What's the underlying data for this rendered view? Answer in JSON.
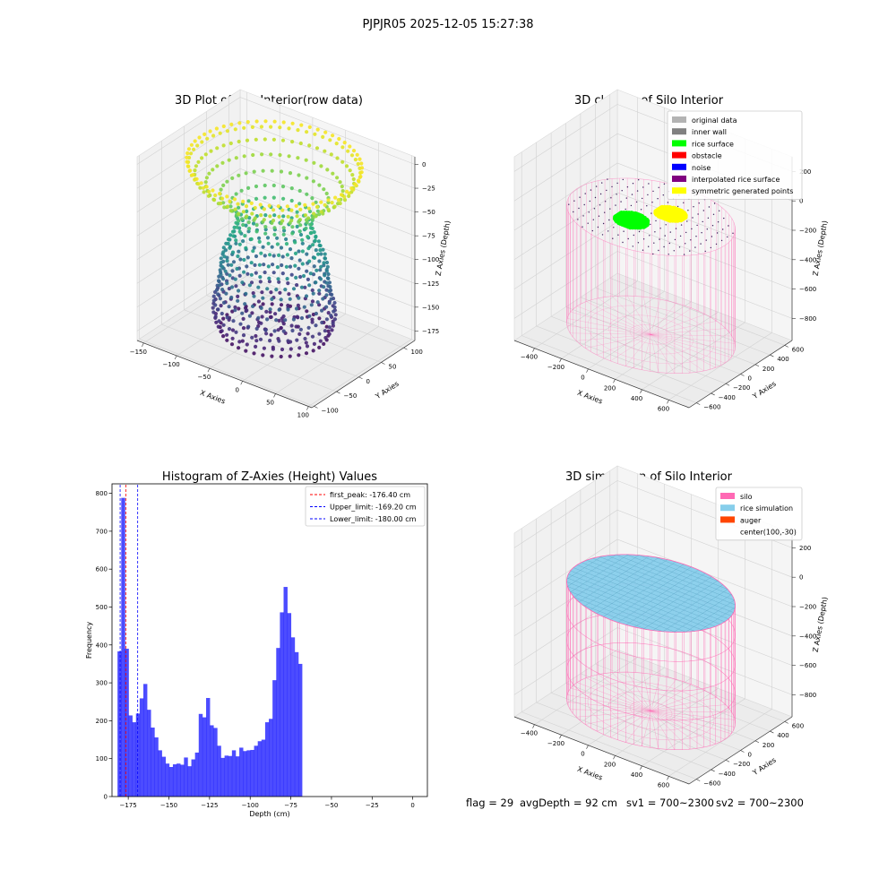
{
  "figure_title": "PJPJR05 2025-12-05 15:27:38",
  "footer": {
    "flag": "flag = 29",
    "avg_depth": "avgDepth = 92 cm",
    "sv1": "sv1 = 700~2300",
    "sv2": "sv2 = 700~2300"
  },
  "chart_data": [
    {
      "type": "scatter",
      "projection": "3d",
      "title": "3D Plot of Silo Interior(row data)",
      "xlabel": "X Axies",
      "ylabel": "Y Axies",
      "zlabel": "Z Axies (Depth)",
      "x_ticks": [
        -150,
        -100,
        -50,
        0,
        50,
        100
      ],
      "y_ticks": [
        -100,
        -50,
        0,
        50,
        100
      ],
      "z_ticks": [
        0,
        -25,
        -50,
        -75,
        -100,
        -125,
        -150,
        -175
      ],
      "xlim": [
        -160,
        105
      ],
      "ylim": [
        -105,
        125
      ],
      "zlim": [
        -185,
        8
      ],
      "colormap": "viridis",
      "profile": [
        {
          "z": -175,
          "r": 68
        },
        {
          "z": -165,
          "r": 74
        },
        {
          "z": -155,
          "r": 77
        },
        {
          "z": -145,
          "r": 76
        },
        {
          "z": -135,
          "r": 72
        },
        {
          "z": -125,
          "r": 70
        },
        {
          "z": -115,
          "r": 68
        },
        {
          "z": -105,
          "r": 67
        },
        {
          "z": -95,
          "r": 64
        },
        {
          "z": -85,
          "r": 58
        },
        {
          "z": -75,
          "r": 52
        },
        {
          "z": -65,
          "r": 48
        },
        {
          "z": -55,
          "r": 48
        },
        {
          "z": -45,
          "r": 55
        },
        {
          "z": -35,
          "r": 68
        },
        {
          "z": -25,
          "r": 86
        },
        {
          "z": -15,
          "r": 100
        },
        {
          "z": -5,
          "r": 108
        },
        {
          "z": 0,
          "r": 110
        }
      ],
      "center": [
        -30,
        10
      ]
    },
    {
      "type": "scatter",
      "projection": "3d",
      "title": "3D classify of Silo Interior",
      "xlabel": "X Axies",
      "ylabel": "Y Axies",
      "zlabel": "Z Axies (Depth)",
      "x_ticks": [
        -400,
        -200,
        0,
        200,
        400,
        600
      ],
      "y_ticks": [
        -600,
        -400,
        -200,
        0,
        200,
        400,
        600
      ],
      "z_ticks": [
        200,
        0,
        -200,
        -400,
        -600,
        -800
      ],
      "xlim": [
        -550,
        750
      ],
      "ylim": [
        -700,
        700
      ],
      "zlim": [
        -950,
        300
      ],
      "legend_loc": "upper right",
      "legend": [
        {
          "label": "original data",
          "color": "#b3b3b3"
        },
        {
          "label": "inner wall",
          "color": "#808080"
        },
        {
          "label": "rice surface",
          "color": "#00ff00"
        },
        {
          "label": "obstacle",
          "color": "#ff0000"
        },
        {
          "label": "noise",
          "color": "#0000ff"
        },
        {
          "label": "interpolated rice surface",
          "color": "#800080"
        },
        {
          "label": "symmetric generated points",
          "color": "#ffff00"
        }
      ],
      "silo": {
        "center": [
          100,
          -30
        ],
        "radius": 550,
        "z_top": -100,
        "z_bottom": -900
      },
      "rice_surface_patch": {
        "center": [
          30,
          -170
        ],
        "radius": 110,
        "z": -100
      },
      "symmetric_patch": {
        "center": [
          170,
          110
        ],
        "radius": 100,
        "z": -100
      }
    },
    {
      "type": "bar",
      "title": "Histogram of Z-Axies (Height) Values",
      "xlabel": "Depth (cm)",
      "ylabel": "Frequency",
      "xlim": [
        -185,
        9
      ],
      "ylim": [
        0,
        825
      ],
      "x_ticks": [
        -175,
        -150,
        -125,
        -100,
        -75,
        -50,
        -25,
        0
      ],
      "y_ticks": [
        0,
        100,
        200,
        300,
        400,
        500,
        600,
        700,
        800
      ],
      "bin_start": -181.6,
      "bin_width": 2.27,
      "values": [
        383,
        788,
        390,
        214,
        196,
        219,
        259,
        297,
        229,
        182,
        156,
        122,
        105,
        87,
        78,
        85,
        87,
        84,
        103,
        80,
        98,
        116,
        218,
        209,
        260,
        188,
        181,
        134,
        102,
        108,
        107,
        122,
        106,
        129,
        120,
        122,
        123,
        134,
        146,
        150,
        196,
        205,
        307,
        392,
        486,
        553,
        484,
        420,
        381,
        350
      ],
      "bar_color": "#0000ff",
      "vlines": [
        {
          "label": "first_peak: -176.40 cm",
          "x": -176.4,
          "color": "#ff0000"
        },
        {
          "label": "Upper_limit: -169.20 cm",
          "x": -169.2,
          "color": "#0000ff"
        },
        {
          "label": "Lower_limit: -180.00 cm",
          "x": -180.0,
          "color": "#0000ff"
        }
      ],
      "legend_loc": "upper right"
    },
    {
      "type": "surface",
      "projection": "3d",
      "title": "3D simulation of Silo Interior",
      "xlabel": "X Axies",
      "ylabel": "Y Axies",
      "zlabel": "Z Axies (Depth)",
      "x_ticks": [
        -400,
        -200,
        0,
        200,
        400,
        600
      ],
      "y_ticks": [
        -600,
        -400,
        -200,
        0,
        200,
        400,
        600
      ],
      "z_ticks": [
        200,
        0,
        -200,
        -400,
        -600,
        -800
      ],
      "xlim": [
        -550,
        750
      ],
      "ylim": [
        -700,
        700
      ],
      "zlim": [
        -950,
        300
      ],
      "legend_loc": "upper right",
      "legend": [
        {
          "label": "silo",
          "color": "#ff69b4"
        },
        {
          "label": "rice simulation",
          "color": "#87ceeb"
        },
        {
          "label": "auger",
          "color": "#ff4500"
        },
        {
          "label": "center(100,-30)",
          "color": ""
        }
      ],
      "silo": {
        "center": [
          100,
          -30
        ],
        "radius": 550,
        "z_top": -100,
        "z_bottom": -900
      },
      "rice_level": -100
    }
  ]
}
